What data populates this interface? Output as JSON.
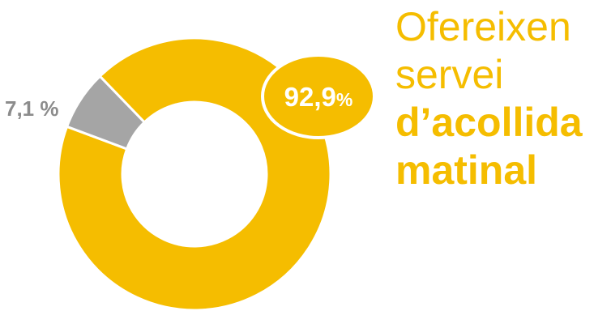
{
  "chart_data": {
    "type": "donut",
    "slices": [
      {
        "label": "92,9%",
        "value": 92.9,
        "color": "#F5BD00"
      },
      {
        "label": "7,1 %",
        "value": 7.1,
        "color": "#A5A5A5"
      }
    ]
  },
  "headline": {
    "line1": "Ofereixen",
    "line2": "servei",
    "line3": "d’acollida",
    "line4": "matinal"
  },
  "colors": {
    "accent": "#F5BD00",
    "minor": "#A5A5A5",
    "minor_label": "#8C8C8C",
    "background": "#FFFFFF"
  }
}
